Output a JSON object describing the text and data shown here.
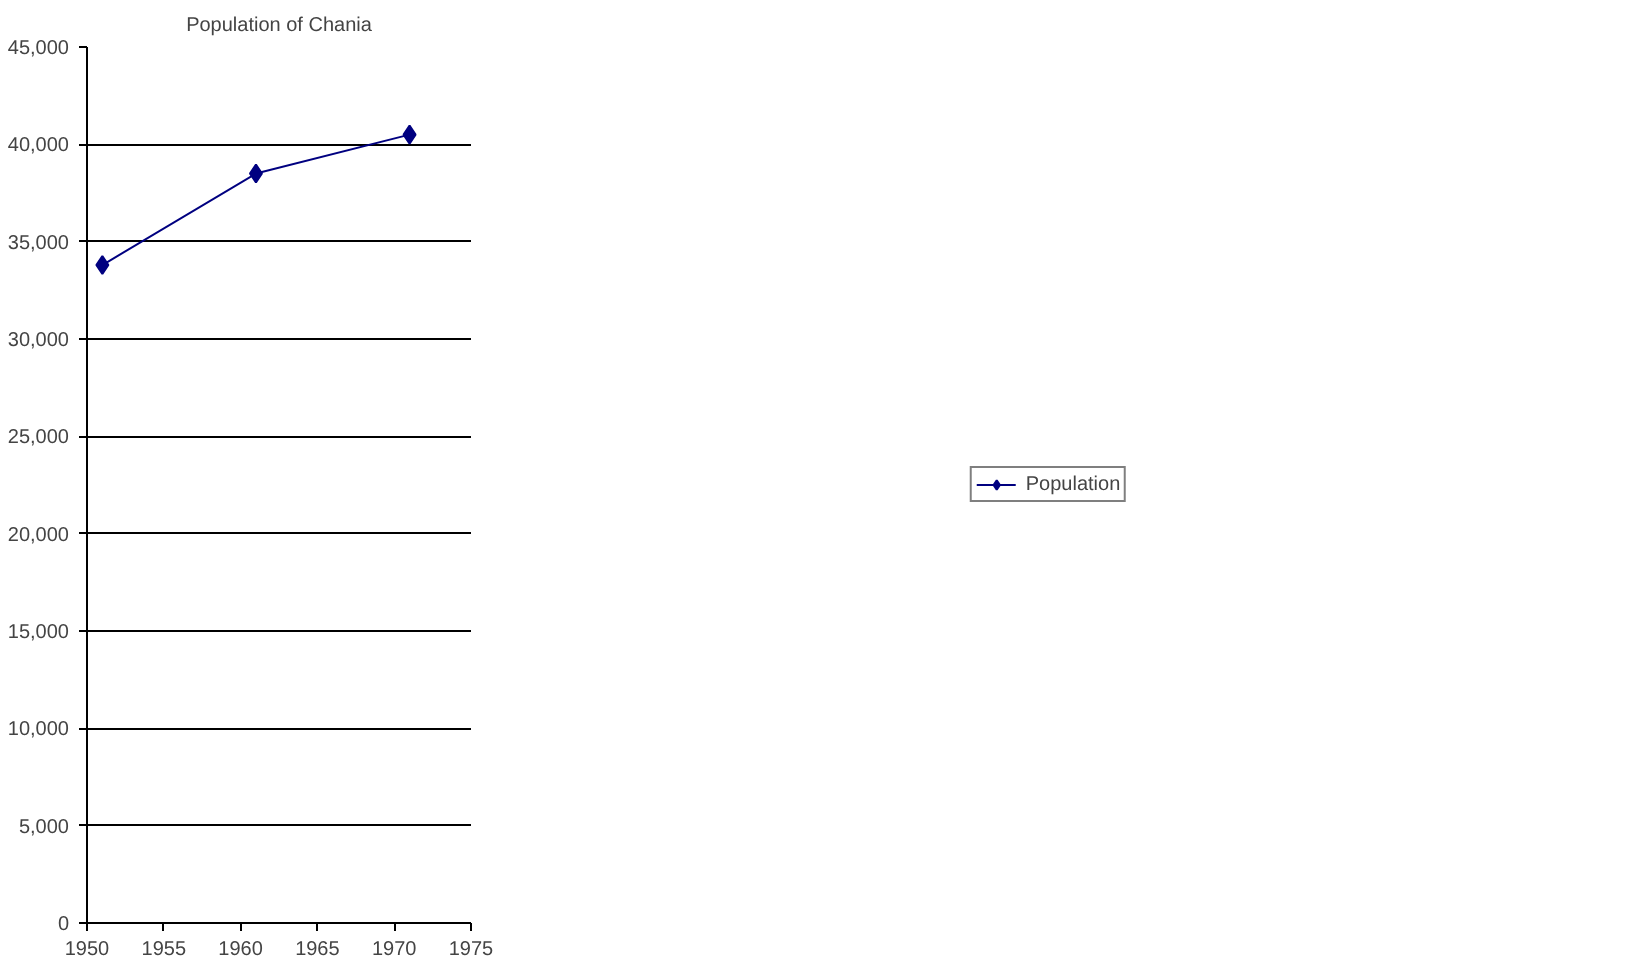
{
  "chart_data": {
    "type": "line",
    "title": "Population of Chania",
    "x": [
      1951,
      1961,
      1971
    ],
    "series": [
      {
        "name": "Population",
        "color": "#000080",
        "values": [
          33800,
          38500,
          40500
        ]
      }
    ],
    "xlim": [
      1950,
      1975
    ],
    "xticks": [
      1950,
      1955,
      1960,
      1965,
      1970,
      1975
    ],
    "ylim": [
      0,
      45000
    ],
    "yticks": [
      {
        "value": 0,
        "label": "0"
      },
      {
        "value": 5000,
        "label": "5,000"
      },
      {
        "value": 10000,
        "label": "10,000"
      },
      {
        "value": 15000,
        "label": "15,000"
      },
      {
        "value": 20000,
        "label": "20,000"
      },
      {
        "value": 25000,
        "label": "25,000"
      },
      {
        "value": 30000,
        "label": "30,000"
      },
      {
        "value": 35000,
        "label": "35,000"
      },
      {
        "value": 40000,
        "label": "40,000"
      },
      {
        "value": 45000,
        "label": "45,000"
      }
    ],
    "grid": "y",
    "legend": "right",
    "marker": "diamond",
    "line_style": "solid"
  }
}
